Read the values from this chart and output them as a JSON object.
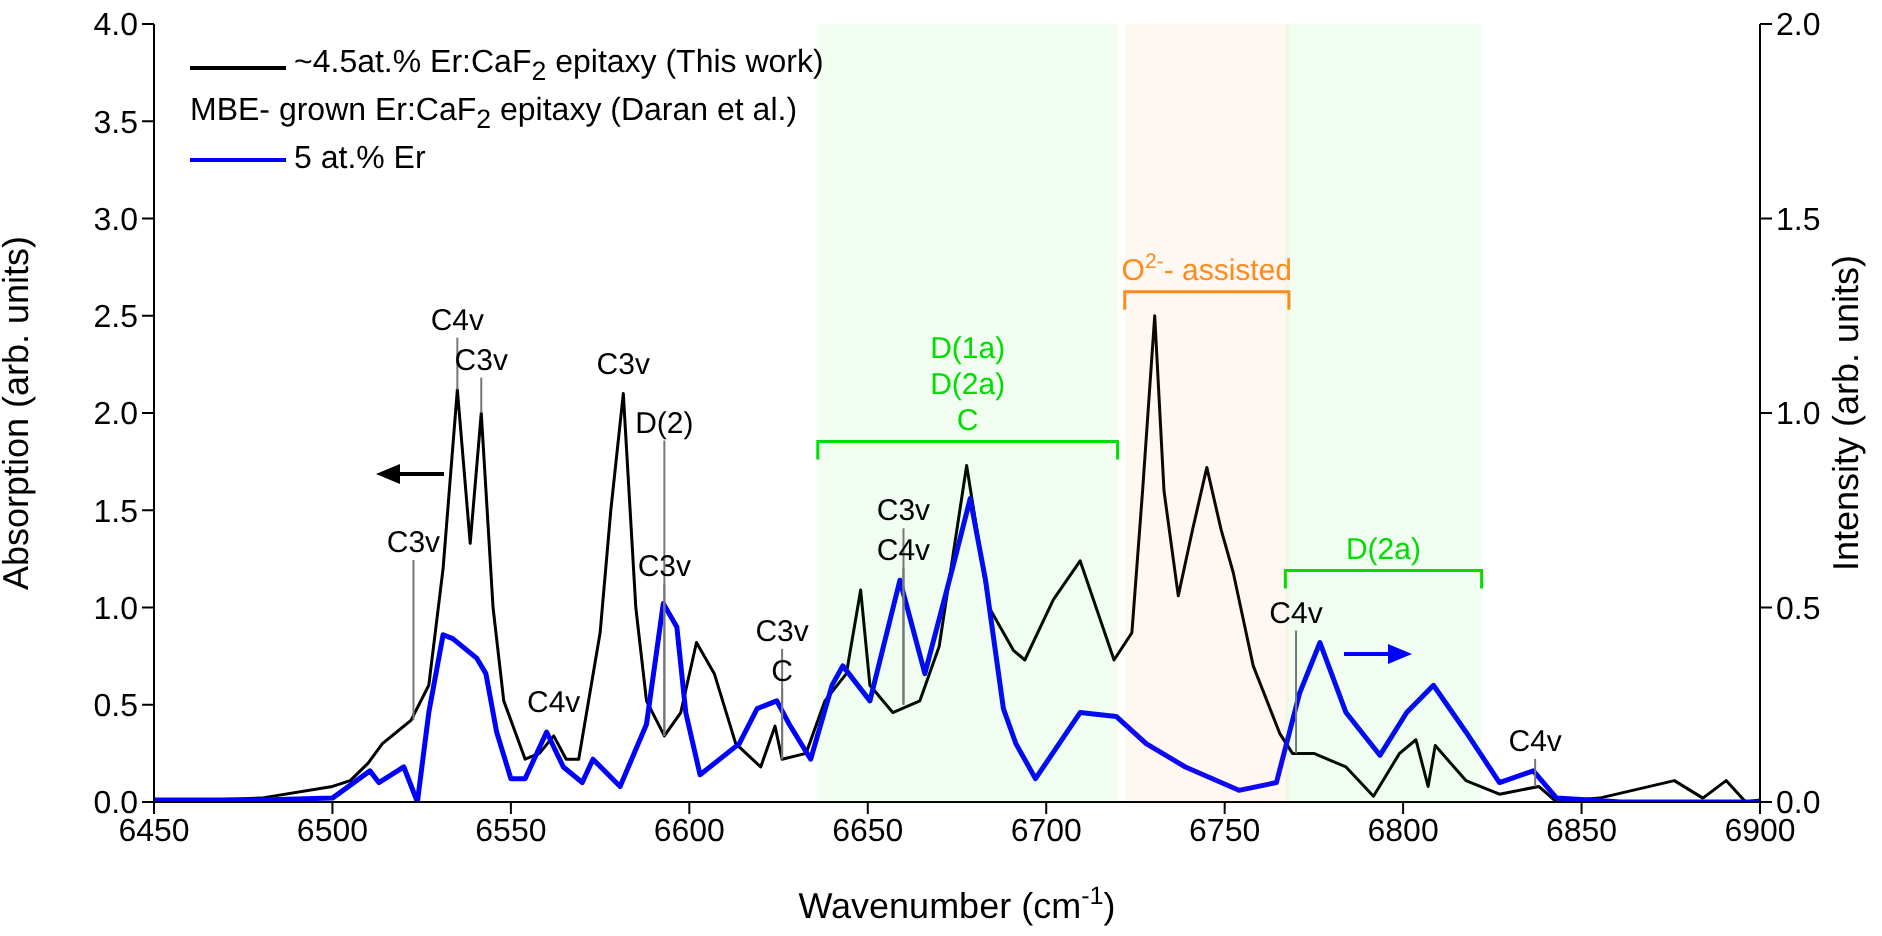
{
  "chart_data": {
    "type": "line",
    "xlabel": "Wavenumber (cm$^{-1}$)",
    "ylabel": "Absorption (arb. units)",
    "y2label": "Intensity (arb. units)",
    "xlim": [
      6450,
      6900
    ],
    "xticks": [
      6450,
      6500,
      6550,
      6600,
      6650,
      6700,
      6750,
      6800,
      6850,
      6900
    ],
    "ylim": [
      0,
      4
    ],
    "yticks": [
      {
        "value": 0,
        "label": "0.0"
      },
      {
        "value": 0.5,
        "label": "0.5"
      },
      {
        "value": 1,
        "label": "1.0"
      },
      {
        "value": 1.5,
        "label": "1.5"
      },
      {
        "value": 2,
        "label": "2.0"
      },
      {
        "value": 2.5,
        "label": "2.5"
      },
      {
        "value": 3,
        "label": "3.0"
      },
      {
        "value": 3.5,
        "label": "3.5"
      },
      {
        "value": 4,
        "label": "4.0"
      }
    ],
    "y2lim": [
      0,
      2
    ],
    "y2ticks": [
      {
        "value": 0,
        "label": "0.0"
      },
      {
        "value": 0.5,
        "label": "0.5"
      },
      {
        "value": 1,
        "label": "1.0"
      },
      {
        "value": 1.5,
        "label": "1.5"
      },
      {
        "value": 2,
        "label": "2.0"
      }
    ],
    "legend": "top left",
    "marker": "none",
    "line_style": "solid",
    "series": [
      {
        "name": "~4.5at.% Er:CaF$_{2}$ epitaxy (This work)",
        "color": "#000000",
        "x": [
          6450,
          6480,
          6500,
          6505,
          6510,
          6514,
          6518,
          6522,
          6527,
          6531,
          6535,
          6538.6,
          6541.7,
          6545,
          6548,
          6554,
          6558,
          6562,
          6565.5,
          6569,
          6575,
          6578,
          6581.5,
          6585,
          6588,
          6593,
          6597.6,
          6602,
          6607,
          6613,
          6620,
          6624,
          6626,
          6632.7,
          6638,
          6644,
          6648,
          6650.6,
          6657,
          6664.6,
          6670,
          6677.7,
          6684,
          6690.8,
          6694,
          6702,
          6709.5,
          6719,
          6724,
          6727,
          6730.4,
          6733,
          6737,
          6741,
          6745,
          6749,
          6752.4,
          6758,
          6765.5,
          6769,
          6775,
          6784,
          6791.7,
          6799,
          6803.6,
          6807,
          6809,
          6817.6,
          6827,
          6838,
          6843,
          6855,
          6876,
          6884,
          6890.5,
          6896,
          6900
        ],
        "values": [
          0,
          0.02,
          0.08,
          0.11,
          0.2,
          0.3,
          0.36,
          0.42,
          0.6,
          1.2,
          2.12,
          1.33,
          2.0,
          1.0,
          0.52,
          0.22,
          0.25,
          0.34,
          0.22,
          0.22,
          0.87,
          1.5,
          2.1,
          1.0,
          0.52,
          0.34,
          0.46,
          0.82,
          0.66,
          0.3,
          0.18,
          0.39,
          0.22,
          0.25,
          0.52,
          0.66,
          1.09,
          0.6,
          0.46,
          0.52,
          0.8,
          1.73,
          1.0,
          0.78,
          0.73,
          1.04,
          1.24,
          0.73,
          0.87,
          1.6,
          2.5,
          1.6,
          1.06,
          1.4,
          1.72,
          1.4,
          1.18,
          0.7,
          0.35,
          0.25,
          0.25,
          0.18,
          0.03,
          0.25,
          0.32,
          0.08,
          0.29,
          0.11,
          0.04,
          0.08,
          0,
          0.02,
          0.11,
          0.02,
          0.11,
          0,
          0.01
        ]
      },
      {
        "name": "5 at.% Er",
        "color": "#0000ff",
        "axis": "y2",
        "x": [
          6450,
          6480,
          6500,
          6510.5,
          6513,
          6520,
          6523.8,
          6527,
          6531,
          6533.7,
          6540.4,
          6543,
          6546,
          6550,
          6554,
          6560,
          6564.7,
          6570,
          6573,
          6580.6,
          6588,
          6592.7,
          6596.5,
          6599,
          6603,
          6614,
          6619,
          6624.5,
          6628,
          6634,
          6640,
          6643,
          6650.6,
          6659,
          6666,
          6674,
          6678.7,
          6683,
          6688,
          6691.5,
          6697,
          6709.5,
          6719.6,
          6728,
          6739,
          6754,
          6764.5,
          6771,
          6776.7,
          6784,
          6793.5,
          6801,
          6808.5,
          6817.6,
          6827,
          6836.5,
          6843,
          6861,
          6900
        ],
        "values": [
          0.005,
          0.005,
          0.01,
          0.08,
          0.05,
          0.09,
          0,
          0.23,
          0.43,
          0.42,
          0.37,
          0.33,
          0.18,
          0.06,
          0.06,
          0.18,
          0.09,
          0.05,
          0.11,
          0.04,
          0.2,
          0.51,
          0.45,
          0.23,
          0.07,
          0.15,
          0.24,
          0.26,
          0.2,
          0.11,
          0.3,
          0.35,
          0.26,
          0.57,
          0.33,
          0.61,
          0.78,
          0.57,
          0.24,
          0.15,
          0.06,
          0.23,
          0.22,
          0.15,
          0.09,
          0.03,
          0.05,
          0.28,
          0.41,
          0.23,
          0.12,
          0.23,
          0.3,
          0.18,
          0.05,
          0.08,
          0.01,
          0,
          0
        ]
      }
    ],
    "bands": [
      {
        "axis": "x",
        "from": 6636,
        "to": 6720,
        "color": "#00dd00",
        "label": "D(1a)\nD(2a)\nC"
      },
      {
        "axis": "x",
        "from": 6722,
        "to": 6768,
        "color": "#ff8c1a",
        "label": "O$^{2-}$- assisted"
      },
      {
        "axis": "x",
        "from": 6767,
        "to": 6822,
        "color": "#00dd00",
        "label": "D(2a)"
      }
    ],
    "annotations": [
      "MBE- grown Er:CaF$_{2}$ epitaxy (Daran et al.)",
      {
        "text": "C3v",
        "x": 6541.7,
        "y": 2.0
      },
      {
        "text": "C4v",
        "x": 6535,
        "y": 2.12
      },
      {
        "text": "C3v",
        "x": 6522.7,
        "y": 0.42
      },
      {
        "text": "C4v",
        "x": 6562,
        "y": 0.34
      },
      {
        "text": "C3v",
        "x": 6581.5,
        "y": 2.1
      },
      {
        "text": "D(2)",
        "x": 6593,
        "y": 0.34
      },
      {
        "text": "C3v",
        "x": 6593,
        "y": 0.34
      },
      {
        "text": "C",
        "x": 6626,
        "y": 0.22
      },
      {
        "text": "C3v",
        "x": 6626,
        "y": 0.22
      },
      {
        "text": "C4v",
        "x": 6660,
        "y": 0.5
      },
      {
        "text": "C3v",
        "x": 6660,
        "y": 0.5
      },
      {
        "text": "C4v",
        "x": 6770,
        "y": 0.25
      },
      {
        "text": "C4v",
        "x": 6837,
        "y": 0.08
      }
    ]
  }
}
